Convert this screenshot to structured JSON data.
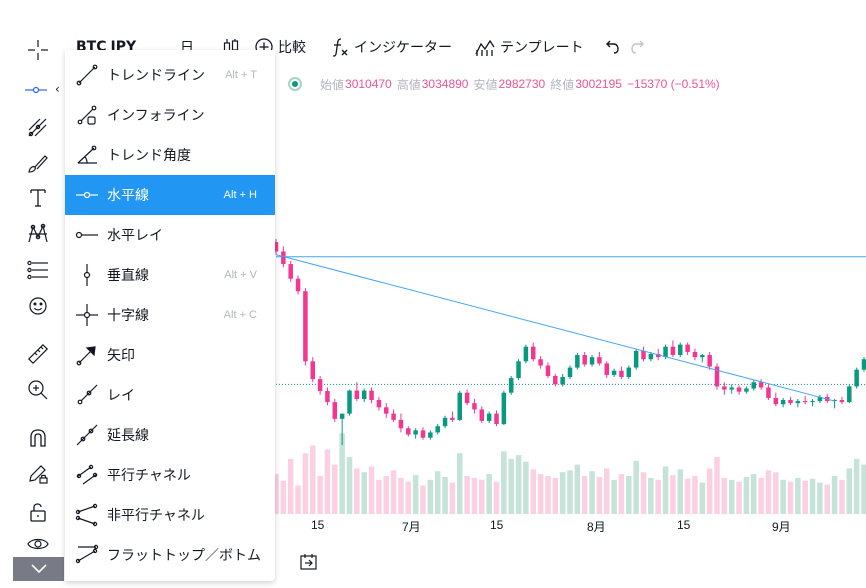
{
  "toolbar": {
    "symbol": "BTC",
    "symbol_quote": "JPY",
    "interval": "日",
    "compare_label": "比較",
    "indicators_label": "インジケーター",
    "templates_label": "テンプレート"
  },
  "legend": {
    "open_label": "始値",
    "open": "3010470",
    "high_label": "高値",
    "high": "3034890",
    "low_label": "安値",
    "low": "2982730",
    "close_label": "終値",
    "close": "3002195",
    "change": "−15370 (−0.51%)"
  },
  "menu": {
    "items": [
      {
        "label": "トレンドライン",
        "shortcut": "Alt + T",
        "icon": "trend-line-icon"
      },
      {
        "label": "インフォライン",
        "shortcut": "",
        "icon": "info-line-icon"
      },
      {
        "label": "トレンド角度",
        "shortcut": "",
        "icon": "trend-angle-icon"
      },
      {
        "label": "水平線",
        "shortcut": "Alt + H",
        "icon": "horizontal-line-icon",
        "selected": true
      },
      {
        "label": "水平レイ",
        "shortcut": "",
        "icon": "horizontal-ray-icon"
      },
      {
        "label": "垂直線",
        "shortcut": "Alt + V",
        "icon": "vertical-line-icon"
      },
      {
        "label": "十字線",
        "shortcut": "Alt + C",
        "icon": "cross-line-icon"
      },
      {
        "label": "矢印",
        "shortcut": "",
        "icon": "arrow-icon"
      },
      {
        "label": "レイ",
        "shortcut": "",
        "icon": "ray-icon"
      },
      {
        "label": "延長線",
        "shortcut": "",
        "icon": "extended-line-icon"
      },
      {
        "label": "平行チャネル",
        "shortcut": "",
        "icon": "parallel-channel-icon"
      },
      {
        "label": "非平行チャネル",
        "shortcut": "",
        "icon": "disjoint-channel-icon"
      },
      {
        "label": "フラットトップ／ボトム",
        "shortcut": "",
        "icon": "flat-top-bottom-icon"
      }
    ]
  },
  "xaxis": {
    "labels": [
      "15",
      "7月",
      "15",
      "8月",
      "15",
      "9月"
    ]
  },
  "colors": {
    "up": "#089981",
    "down": "#f23692",
    "up_volume": "#c5e3d9",
    "down_volume": "#fbd0e2",
    "accent": "#2196f3",
    "drawing_line": "#42a5f5"
  },
  "chart_data": {
    "type": "candlestick",
    "title": "",
    "series_name": "BTC/JPY",
    "ohlc": [
      [
        3150000,
        3165000,
        3090000,
        3105000
      ],
      [
        3105000,
        3130000,
        3030000,
        3045000
      ],
      [
        3045000,
        3060000,
        2960000,
        2975000
      ],
      [
        2975000,
        2990000,
        2900000,
        2915000
      ],
      [
        2915000,
        2930000,
        2560000,
        2580000
      ],
      [
        2580000,
        2600000,
        2480000,
        2495000
      ],
      [
        2495000,
        2510000,
        2420000,
        2438000
      ],
      [
        2438000,
        2455000,
        2370000,
        2385000
      ],
      [
        2385000,
        2400000,
        2290000,
        2305000
      ],
      [
        2305000,
        2330000,
        2180000,
        2330000
      ],
      [
        2330000,
        2445000,
        2320000,
        2440000
      ],
      [
        2440000,
        2480000,
        2390000,
        2400000
      ],
      [
        2400000,
        2450000,
        2385000,
        2440000
      ],
      [
        2440000,
        2455000,
        2380000,
        2395000
      ],
      [
        2395000,
        2410000,
        2345000,
        2360000
      ],
      [
        2360000,
        2380000,
        2310000,
        2330000
      ],
      [
        2330000,
        2350000,
        2290000,
        2300000
      ],
      [
        2300000,
        2330000,
        2240000,
        2260000
      ],
      [
        2260000,
        2270000,
        2220000,
        2230000
      ],
      [
        2230000,
        2260000,
        2210000,
        2250000
      ],
      [
        2250000,
        2265000,
        2205000,
        2215000
      ],
      [
        2215000,
        2250000,
        2205000,
        2240000
      ],
      [
        2240000,
        2280000,
        2230000,
        2270000
      ],
      [
        2270000,
        2320000,
        2260000,
        2310000
      ],
      [
        2310000,
        2340000,
        2290000,
        2300000
      ],
      [
        2300000,
        2440000,
        2295000,
        2430000
      ],
      [
        2430000,
        2445000,
        2370000,
        2380000
      ],
      [
        2380000,
        2400000,
        2330000,
        2350000
      ],
      [
        2350000,
        2365000,
        2285000,
        2295000
      ],
      [
        2295000,
        2340000,
        2285000,
        2330000
      ],
      [
        2330000,
        2345000,
        2270000,
        2280000
      ],
      [
        2280000,
        2440000,
        2275000,
        2430000
      ],
      [
        2430000,
        2510000,
        2420000,
        2500000
      ],
      [
        2500000,
        2590000,
        2490000,
        2580000
      ],
      [
        2580000,
        2660000,
        2570000,
        2650000
      ],
      [
        2650000,
        2670000,
        2580000,
        2590000
      ],
      [
        2590000,
        2605000,
        2545000,
        2560000
      ],
      [
        2560000,
        2575000,
        2500000,
        2510000
      ],
      [
        2510000,
        2520000,
        2460000,
        2470000
      ],
      [
        2470000,
        2520000,
        2460000,
        2505000
      ],
      [
        2505000,
        2560000,
        2495000,
        2550000
      ],
      [
        2550000,
        2620000,
        2540000,
        2610000
      ],
      [
        2610000,
        2625000,
        2555000,
        2565000
      ],
      [
        2565000,
        2610000,
        2555000,
        2600000
      ],
      [
        2600000,
        2625000,
        2560000,
        2570000
      ],
      [
        2570000,
        2580000,
        2500000,
        2515000
      ],
      [
        2515000,
        2545000,
        2505000,
        2535000
      ],
      [
        2535000,
        2555000,
        2495000,
        2505000
      ],
      [
        2505000,
        2560000,
        2495000,
        2550000
      ],
      [
        2550000,
        2640000,
        2540000,
        2630000
      ],
      [
        2630000,
        2650000,
        2580000,
        2590000
      ],
      [
        2590000,
        2625000,
        2580000,
        2615000
      ],
      [
        2615000,
        2640000,
        2585000,
        2600000
      ],
      [
        2600000,
        2660000,
        2590000,
        2650000
      ],
      [
        2650000,
        2680000,
        2600000,
        2610000
      ],
      [
        2610000,
        2670000,
        2600000,
        2660000
      ],
      [
        2660000,
        2670000,
        2610000,
        2625000
      ],
      [
        2625000,
        2640000,
        2585000,
        2600000
      ],
      [
        2600000,
        2615000,
        2575000,
        2610000
      ],
      [
        2610000,
        2625000,
        2540000,
        2555000
      ],
      [
        2555000,
        2570000,
        2445000,
        2460000
      ],
      [
        2460000,
        2480000,
        2420000,
        2445000
      ],
      [
        2445000,
        2470000,
        2425000,
        2455000
      ],
      [
        2455000,
        2465000,
        2420000,
        2435000
      ],
      [
        2435000,
        2460000,
        2425000,
        2450000
      ],
      [
        2450000,
        2490000,
        2440000,
        2480000
      ],
      [
        2480000,
        2495000,
        2445000,
        2455000
      ],
      [
        2455000,
        2470000,
        2395000,
        2405000
      ],
      [
        2405000,
        2430000,
        2365000,
        2375000
      ],
      [
        2375000,
        2405000,
        2360000,
        2395000
      ],
      [
        2395000,
        2410000,
        2370000,
        2380000
      ],
      [
        2380000,
        2400000,
        2360000,
        2390000
      ],
      [
        2390000,
        2415000,
        2375000,
        2385000
      ],
      [
        2385000,
        2400000,
        2365000,
        2390000
      ],
      [
        2390000,
        2420000,
        2380000,
        2410000
      ],
      [
        2410000,
        2425000,
        2380000,
        2390000
      ],
      [
        2390000,
        2400000,
        2355000,
        2395000
      ],
      [
        2395000,
        2410000,
        2375000,
        2385000
      ],
      [
        2385000,
        2470000,
        2380000,
        2460000
      ],
      [
        2460000,
        2550000,
        2450000,
        2540000
      ],
      [
        2540000,
        2600000,
        2530000,
        2590000
      ],
      [
        2590000,
        2605000,
        2520000,
        2530000
      ],
      [
        2530000,
        2540000,
        2470000,
        2485000
      ]
    ],
    "volume": [
      42,
      35,
      58,
      30,
      64,
      72,
      40,
      68,
      52,
      85,
      60,
      48,
      44,
      50,
      36,
      40,
      46,
      38,
      34,
      41,
      30,
      36,
      45,
      39,
      33,
      64,
      40,
      38,
      36,
      42,
      34,
      66,
      58,
      62,
      55,
      47,
      42,
      40,
      38,
      44,
      46,
      52,
      40,
      45,
      39,
      48,
      36,
      42,
      40,
      56,
      44,
      38,
      36,
      50,
      41,
      47,
      37,
      40,
      33,
      48,
      60,
      38,
      36,
      34,
      39,
      42,
      38,
      46,
      44,
      36,
      34,
      38,
      35,
      37,
      33,
      31,
      40,
      36,
      48,
      58,
      52,
      44,
      40
    ],
    "horizontal_line": 3080000,
    "dotted_line": 2470000,
    "trend_line": {
      "from_index": 0,
      "from_price": 3090000,
      "to_index": 76,
      "to_price": 2390000
    }
  }
}
